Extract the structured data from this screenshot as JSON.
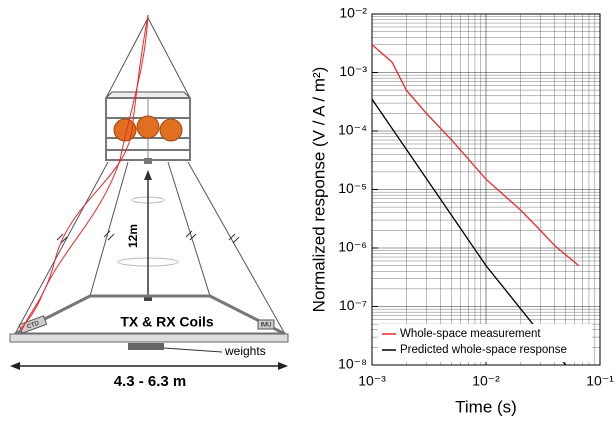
{
  "diagram": {
    "height_label": "12m",
    "coils_label": "TX & RX Coils",
    "weights_label": "weights",
    "width_label": "4.3 - 6.3 m",
    "ctd_label": "CTD",
    "imu_label": "IMU"
  },
  "chart_data": {
    "type": "line",
    "x_label": "Time (s)",
    "y_label": "Normalized response (V / A / m²)",
    "xlog": true,
    "ylog": true,
    "grid": true,
    "legend": "lower right",
    "xlim": [
      0.001,
      0.1
    ],
    "xticks": [
      {
        "value": 0.001,
        "label": "10⁻³"
      },
      {
        "value": 0.01,
        "label": "10⁻²"
      },
      {
        "value": 0.1,
        "label": "10⁻¹"
      }
    ],
    "ylim": [
      1e-08,
      0.01
    ],
    "yticks": [
      {
        "value": 1e-08,
        "label": "10⁻⁸"
      },
      {
        "value": 1e-07,
        "label": "10⁻⁷"
      },
      {
        "value": 1e-06,
        "label": "10⁻⁶"
      },
      {
        "value": 1e-05,
        "label": "10⁻⁵"
      },
      {
        "value": 0.0001,
        "label": "10⁻⁴"
      },
      {
        "value": 0.001,
        "label": "10⁻³"
      },
      {
        "value": 0.01,
        "label": "10⁻²"
      }
    ],
    "series": [
      {
        "name": "Whole-space measurement",
        "color": "#e8282b",
        "x": [
          0.001,
          0.0015,
          0.002,
          0.003,
          0.005,
          0.01,
          0.02,
          0.03,
          0.04,
          0.065
        ],
        "values": [
          0.003,
          0.0015,
          0.0005,
          0.0002,
          7e-05,
          1.5e-05,
          4.5e-06,
          2e-06,
          1.1e-06,
          5e-07
        ]
      },
      {
        "name": "Predicted whole-space response",
        "color": "#000000",
        "x": [
          0.001,
          0.01,
          0.05
        ],
        "values": [
          0.00035,
          5e-07,
          1e-08
        ]
      }
    ]
  }
}
